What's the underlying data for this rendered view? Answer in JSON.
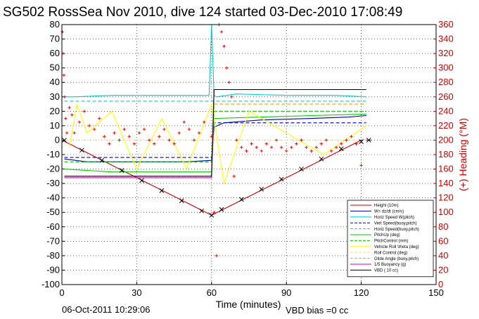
{
  "chart_data": {
    "type": "line",
    "title": "SG502 RossSea Nov 2010, dive 124 started 03-Dec-2010 17:08:49",
    "xlabel": "Time (minutes)",
    "ylabel_right": "(+) Heading (°M)",
    "xlim": [
      0,
      150
    ],
    "ylim": [
      -100,
      80
    ],
    "ylim_right": [
      0,
      360
    ],
    "x_ticks": [
      0,
      30,
      60,
      90,
      120,
      150
    ],
    "y_ticks": [
      -100,
      -90,
      -80,
      -70,
      -60,
      -50,
      -40,
      -30,
      -20,
      -10,
      0,
      10,
      20,
      30,
      40,
      50,
      60,
      70,
      80
    ],
    "y_ticks_right": [
      0,
      20,
      40,
      60,
      80,
      100,
      120,
      140,
      160,
      180,
      200,
      220,
      240,
      260,
      280,
      300,
      320,
      340,
      360
    ],
    "grid": true,
    "legend_position": "bottom-right",
    "footer_date": "06-Oct-2011 10:29:06",
    "footer_vbd": "VBD bias =0 cc",
    "colors": {
      "height": "#cc0000",
      "w": "#0000aa",
      "horiz": "#00cccc",
      "pitch": "#00cc00",
      "roll": "#ffff00",
      "glide": "#ff9900",
      "buoy": "#cc00cc",
      "vbd": "#000000",
      "heading": "#ff0000"
    },
    "series": [
      {
        "name": "Height (10m)",
        "color": "#cc0000",
        "style": "solid",
        "x": [
          0,
          60,
          120,
          124
        ],
        "y": [
          0,
          -52,
          0,
          0
        ]
      },
      {
        "name": "W= dz/dt (cm/s)",
        "color": "#0000aa",
        "style": "solid",
        "x": [
          1,
          10,
          30,
          50,
          60,
          61,
          65,
          80,
          100,
          115,
          122
        ],
        "y": [
          -13,
          -15,
          -15,
          -15,
          -14,
          9,
          12,
          14,
          15,
          16,
          17
        ]
      },
      {
        "name": "Horiz Speed W(pitch)",
        "color": "#00cccc",
        "style": "solid",
        "x": [
          1,
          5,
          20,
          40,
          59,
          60,
          61,
          62,
          70,
          90,
          110,
          122
        ],
        "y": [
          30,
          30,
          31,
          31,
          31,
          80,
          31,
          30,
          32,
          31,
          31,
          30
        ]
      },
      {
        "name": "Vert Speed(buoy,pitch)",
        "color": "#0000aa",
        "style": "dashed",
        "x": [
          1,
          60,
          61,
          122
        ],
        "y": [
          -12,
          -12,
          12,
          12
        ]
      },
      {
        "name": "Horiz Speed(buoy,pitch)",
        "color": "#00cccc",
        "style": "dashed",
        "x": [
          1,
          60,
          61,
          122
        ],
        "y": [
          27,
          27,
          27,
          27
        ]
      },
      {
        "name": "PitchUp (deg)",
        "color": "#00cc00",
        "style": "solid",
        "x": [
          1,
          20,
          40,
          60,
          61,
          80,
          100,
          122
        ],
        "y": [
          -20,
          -22,
          -22,
          -22,
          15,
          16,
          17,
          18
        ]
      },
      {
        "name": "PitchControl (mm)",
        "color": "#00cc00",
        "style": "dashed",
        "x": [
          1,
          60,
          61,
          122
        ],
        "y": [
          -15,
          -15,
          20,
          20
        ]
      },
      {
        "name": "Vehicle Roll \\theta (deg)",
        "color": "#ffff00",
        "style": "solid",
        "x": [
          3,
          6,
          10,
          20,
          30,
          40,
          50,
          60,
          65,
          75,
          90,
          105,
          122
        ],
        "y": [
          -5,
          25,
          5,
          20,
          -20,
          15,
          -20,
          25,
          -30,
          20,
          5,
          -10,
          10
        ]
      },
      {
        "name": "Roll Control (deg)",
        "color": "#ffff00",
        "style": "dashed",
        "x": [
          1,
          60,
          61,
          122
        ],
        "y": [
          0,
          0,
          0,
          0
        ]
      },
      {
        "name": "Glide Angle (buoy,pitch)",
        "color": "#ff9900",
        "style": "dashed",
        "x": [
          1,
          60,
          61,
          122
        ],
        "y": [
          -25,
          -25,
          25,
          25
        ]
      },
      {
        "name": "1/5 Buoyancy (g)",
        "color": "#cc00cc",
        "style": "solid",
        "x": [
          1,
          60,
          61,
          122
        ],
        "y": [
          -26,
          -26,
          35,
          35
        ]
      },
      {
        "name": "VBD ( 10 cc)",
        "color": "#000000",
        "style": "solid",
        "x": [
          1,
          60,
          61,
          122
        ],
        "y": [
          -25,
          -25,
          35,
          35
        ]
      }
    ],
    "heading_points": {
      "name": "Heading",
      "axis": "right",
      "color": "#ff0000",
      "marker": "+",
      "x": [
        0.2,
        0.5,
        0.8,
        1.1,
        1.5,
        2,
        3,
        4,
        5,
        7,
        9,
        11,
        13,
        15,
        17,
        19,
        21,
        23,
        25,
        27,
        29,
        31,
        33,
        35,
        37,
        39,
        41,
        43,
        45,
        47,
        49,
        51,
        53,
        55,
        57,
        60,
        61,
        62,
        63,
        64,
        65,
        66,
        67,
        68,
        69,
        70,
        72,
        74,
        76,
        78,
        80,
        82,
        84,
        86,
        88,
        90,
        92,
        94,
        96,
        98,
        100,
        102,
        104,
        106,
        108,
        110,
        112,
        114,
        116,
        118,
        120
      ],
      "y": [
        350,
        320,
        290,
        260,
        230,
        210,
        245,
        235,
        210,
        225,
        240,
        220,
        215,
        230,
        205,
        195,
        210,
        200,
        215,
        205,
        195,
        210,
        215,
        200,
        195,
        205,
        215,
        200,
        195,
        210,
        225,
        215,
        200,
        210,
        225,
        205,
        100,
        40,
        360,
        350,
        330,
        300,
        280,
        260,
        150,
        200,
        190,
        185,
        195,
        190,
        185,
        195,
        190,
        200,
        190,
        185,
        190,
        195,
        200,
        190,
        185,
        190,
        195,
        200,
        185,
        190,
        195,
        200,
        205,
        195,
        165
      ]
    },
    "height_markers": {
      "marker": "x",
      "x": [
        1,
        8,
        16,
        24,
        32,
        40,
        48,
        56,
        60,
        64,
        72,
        80,
        88,
        96,
        104,
        112,
        120,
        123
      ],
      "y": [
        0,
        -7,
        -14,
        -21,
        -28,
        -35,
        -42,
        -49,
        -52,
        -48,
        -41,
        -34,
        -27,
        -20,
        -13,
        -6,
        -1,
        0
      ]
    }
  }
}
